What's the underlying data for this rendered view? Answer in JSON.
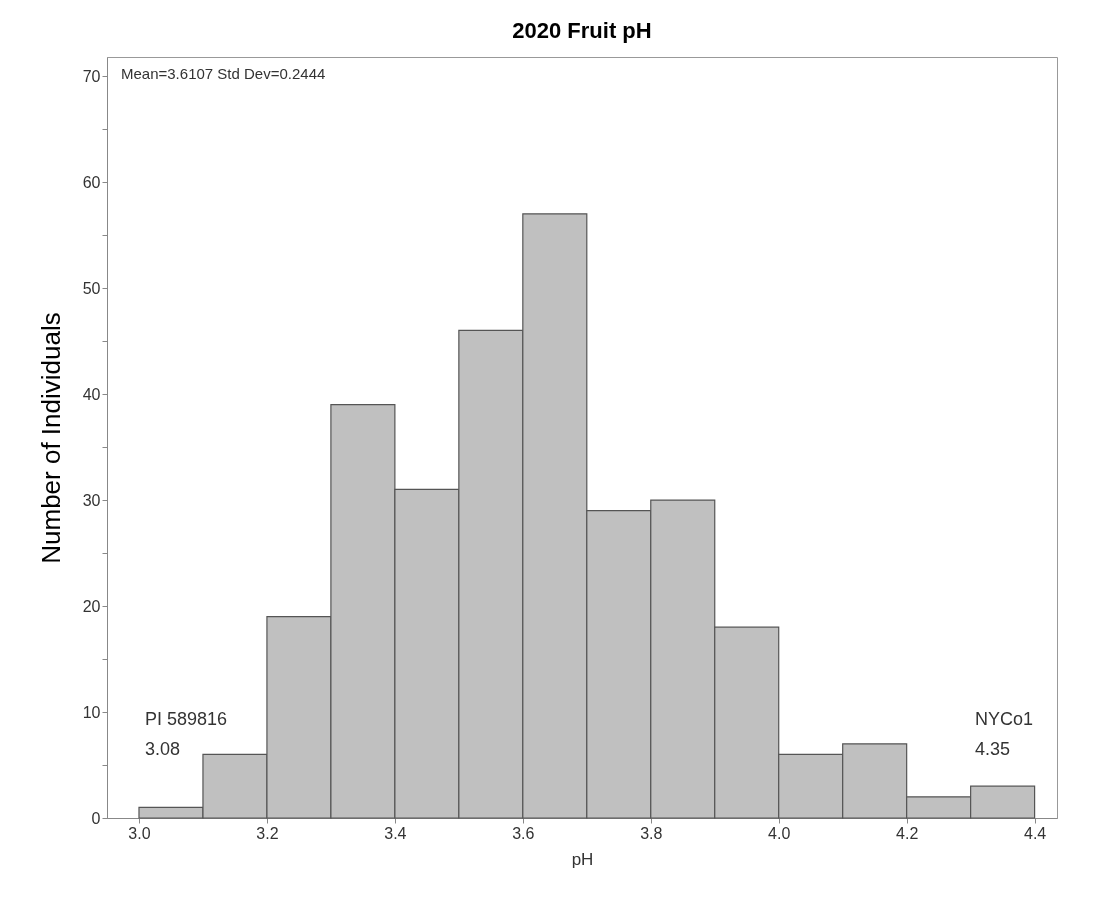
{
  "chart_data": {
    "type": "histogram",
    "title": "2020 Fruit pH",
    "xlabel": "pH",
    "ylabel": "Number of Individuals",
    "bins": [
      3.0,
      3.1,
      3.2,
      3.3,
      3.4,
      3.5,
      3.6,
      3.7,
      3.8,
      3.9,
      4.0,
      4.1,
      4.2,
      4.3,
      4.4
    ],
    "values": [
      1,
      6,
      19,
      39,
      31,
      46,
      57,
      29,
      30,
      18,
      6,
      7,
      2,
      3
    ],
    "color": "#c0c0c0",
    "xlim": [
      2.95,
      4.435
    ],
    "xticks": [
      {
        "value": 3,
        "label": "3.0"
      },
      3.2,
      3.4,
      3.6,
      3.8,
      {
        "value": 4,
        "label": "4.0"
      },
      4.2,
      4.4
    ],
    "ylim": [
      0,
      71.8
    ],
    "yticks": [
      0,
      {
        "value": 5,
        "label": null
      },
      10,
      {
        "value": 15,
        "label": null
      },
      20,
      {
        "value": 25,
        "label": null
      },
      30,
      {
        "value": 35,
        "label": null
      },
      40,
      {
        "value": 45,
        "label": null
      },
      50,
      {
        "value": 55,
        "label": null
      },
      60,
      {
        "value": 65,
        "label": null
      },
      70
    ],
    "grid": false,
    "annotations": [
      "Mean=3.6107  Std Dev=0.2444",
      "PI 589816\n3.08",
      "NYCo1\n4.35"
    ]
  }
}
